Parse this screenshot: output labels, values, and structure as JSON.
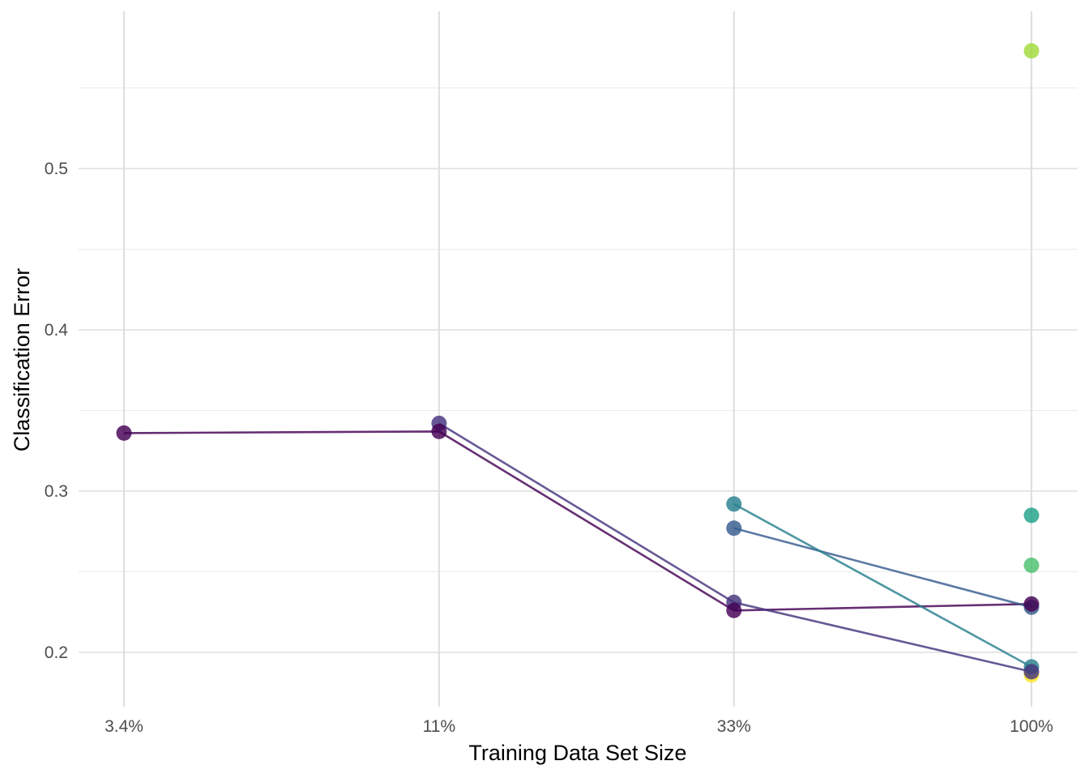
{
  "chart_data": {
    "type": "line",
    "title": "",
    "xlabel": "Training Data Set Size",
    "ylabel": "Classification Error",
    "x_scale": "log",
    "x_ticks": [
      0.034,
      0.11,
      0.33,
      1.0
    ],
    "x_tick_labels": [
      "3.4%",
      "11%",
      "33%",
      "100%"
    ],
    "y_ticks": [
      0.2,
      0.3,
      0.4,
      0.5
    ],
    "y_tick_labels": [
      "0.2",
      "0.3",
      "0.4",
      "0.5"
    ],
    "ylim": [
      0.17,
      0.58
    ],
    "grid": true,
    "legend": "none",
    "series": [
      {
        "color": "#440154",
        "points": [
          [
            0.034,
            0.336
          ],
          [
            0.11,
            0.337
          ],
          [
            0.33,
            0.226
          ],
          [
            1.0,
            0.23
          ]
        ]
      },
      {
        "color": "#46337e",
        "points": [
          [
            0.11,
            0.342
          ],
          [
            0.33,
            0.231
          ],
          [
            1.0,
            0.188
          ]
        ]
      },
      {
        "color": "#365c8d",
        "points": [
          [
            0.33,
            0.277
          ],
          [
            1.0,
            0.228
          ]
        ]
      },
      {
        "color": "#277f8e",
        "points": [
          [
            0.33,
            0.292
          ],
          [
            1.0,
            0.191
          ]
        ]
      },
      {
        "color": "#1fa187",
        "points": [
          [
            1.0,
            0.285
          ]
        ]
      },
      {
        "color": "#4ac16d",
        "points": [
          [
            1.0,
            0.254
          ]
        ]
      },
      {
        "color": "#a0da39",
        "points": [
          [
            1.0,
            0.573
          ]
        ]
      },
      {
        "color": "#fde725",
        "points": [
          [
            1.0,
            0.186
          ]
        ]
      }
    ]
  }
}
